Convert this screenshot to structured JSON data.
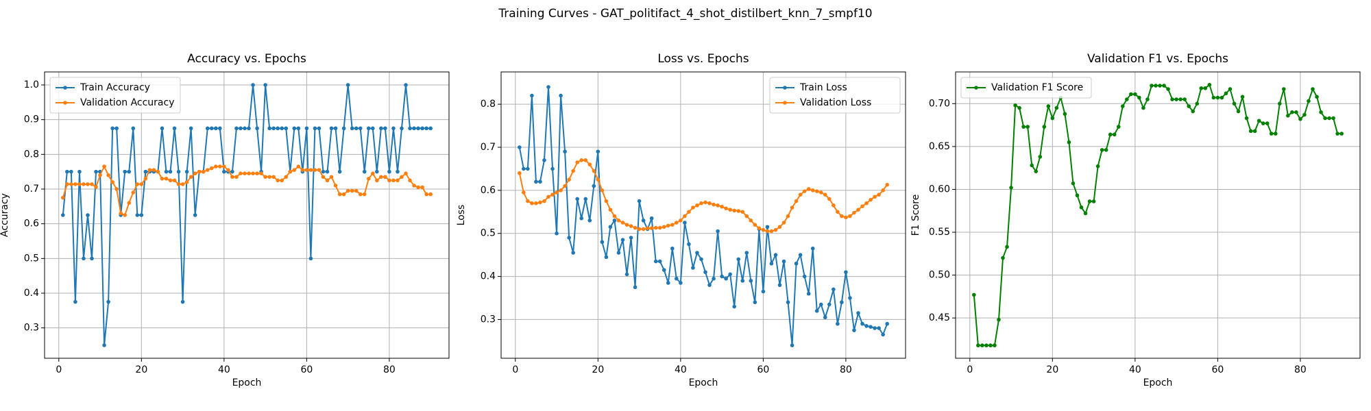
{
  "title": "Training Curves - GAT_politifact_4_shot_distilbert_knn_7_smpf10",
  "chart_data": [
    {
      "type": "line",
      "title": "Accuracy vs. Epochs",
      "x_label": "Epoch",
      "y_label": "Accuracy",
      "x": [
        1,
        2,
        3,
        4,
        5,
        6,
        7,
        8,
        9,
        10,
        11,
        12,
        13,
        14,
        15,
        16,
        17,
        18,
        19,
        20,
        21,
        22,
        23,
        24,
        25,
        26,
        27,
        28,
        29,
        30,
        31,
        32,
        33,
        34,
        35,
        36,
        37,
        38,
        39,
        40,
        41,
        42,
        43,
        44,
        45,
        46,
        47,
        48,
        49,
        50,
        51,
        52,
        53,
        54,
        55,
        56,
        57,
        58,
        59,
        60,
        61,
        62,
        63,
        64,
        65,
        66,
        67,
        68,
        69,
        70,
        71,
        72,
        73,
        74,
        75,
        76,
        77,
        78,
        79,
        80,
        81,
        82,
        83,
        84,
        85,
        86,
        87,
        88,
        89,
        90
      ],
      "series": [
        {
          "name": "Train Accuracy",
          "color": "#1f77b4",
          "values": [
            0.625,
            0.75,
            0.75,
            0.375,
            0.75,
            0.5,
            0.625,
            0.5,
            0.75,
            0.75,
            0.25,
            0.375,
            0.875,
            0.875,
            0.625,
            0.75,
            0.75,
            0.875,
            0.625,
            0.625,
            0.75,
            0.75,
            0.75,
            0.75,
            0.875,
            0.75,
            0.75,
            0.875,
            0.75,
            0.375,
            0.75,
            0.875,
            0.625,
            0.75,
            0.75,
            0.875,
            0.875,
            0.875,
            0.875,
            0.75,
            0.75,
            0.75,
            0.875,
            0.875,
            0.875,
            0.875,
            1.0,
            0.875,
            0.75,
            1.0,
            0.875,
            0.875,
            0.875,
            0.875,
            0.875,
            0.75,
            0.875,
            0.875,
            0.75,
            0.875,
            0.5,
            0.875,
            0.875,
            0.75,
            0.75,
            0.875,
            0.875,
            0.75,
            0.875,
            1.0,
            0.875,
            0.875,
            0.875,
            0.75,
            0.875,
            0.875,
            0.75,
            0.875,
            0.875,
            0.75,
            0.875,
            0.75,
            0.875,
            1.0,
            0.875,
            0.875,
            0.875,
            0.875,
            0.875,
            0.875
          ]
        },
        {
          "name": "Validation Accuracy",
          "color": "#ff7f0e",
          "values": [
            0.675,
            0.714,
            0.714,
            0.714,
            0.714,
            0.714,
            0.714,
            0.714,
            0.706,
            0.74,
            0.765,
            0.74,
            0.72,
            0.7,
            0.63,
            0.625,
            0.66,
            0.69,
            0.714,
            0.714,
            0.73,
            0.755,
            0.755,
            0.75,
            0.73,
            0.73,
            0.725,
            0.725,
            0.714,
            0.714,
            0.72,
            0.735,
            0.745,
            0.75,
            0.75,
            0.755,
            0.76,
            0.765,
            0.765,
            0.765,
            0.755,
            0.735,
            0.735,
            0.745,
            0.745,
            0.745,
            0.745,
            0.745,
            0.745,
            0.735,
            0.735,
            0.735,
            0.725,
            0.725,
            0.735,
            0.75,
            0.755,
            0.765,
            0.755,
            0.755,
            0.755,
            0.755,
            0.755,
            0.735,
            0.725,
            0.735,
            0.71,
            0.685,
            0.685,
            0.695,
            0.695,
            0.695,
            0.685,
            0.685,
            0.73,
            0.745,
            0.725,
            0.735,
            0.735,
            0.725,
            0.725,
            0.725,
            0.735,
            0.745,
            0.725,
            0.71,
            0.705,
            0.705,
            0.685,
            0.685
          ]
        }
      ],
      "xlim": [
        -3.45,
        94.45
      ],
      "xticks": [
        0,
        20,
        40,
        60,
        80
      ],
      "ylim": [
        0.2125,
        1.0375
      ],
      "yticks": [
        0.3,
        0.4,
        0.5,
        0.6,
        0.7,
        0.8,
        0.9,
        {
          "value": 1.0,
          "label": "1.0"
        }
      ],
      "grid": true,
      "legend": "upper left"
    },
    {
      "type": "line",
      "title": "Loss vs. Epochs",
      "x_label": "Epoch",
      "y_label": "Loss",
      "x": [
        1,
        2,
        3,
        4,
        5,
        6,
        7,
        8,
        9,
        10,
        11,
        12,
        13,
        14,
        15,
        16,
        17,
        18,
        19,
        20,
        21,
        22,
        23,
        24,
        25,
        26,
        27,
        28,
        29,
        30,
        31,
        32,
        33,
        34,
        35,
        36,
        37,
        38,
        39,
        40,
        41,
        42,
        43,
        44,
        45,
        46,
        47,
        48,
        49,
        50,
        51,
        52,
        53,
        54,
        55,
        56,
        57,
        58,
        59,
        60,
        61,
        62,
        63,
        64,
        65,
        66,
        67,
        68,
        69,
        70,
        71,
        72,
        73,
        74,
        75,
        76,
        77,
        78,
        79,
        80,
        81,
        82,
        83,
        84,
        85,
        86,
        87,
        88,
        89,
        90
      ],
      "series": [
        {
          "name": "Train Loss",
          "color": "#1f77b4",
          "values": [
            0.7,
            0.65,
            0.65,
            0.82,
            0.62,
            0.62,
            0.67,
            0.84,
            0.65,
            0.5,
            0.82,
            0.69,
            0.49,
            0.455,
            0.58,
            0.535,
            0.58,
            0.53,
            0.61,
            0.69,
            0.48,
            0.445,
            0.515,
            0.53,
            0.455,
            0.485,
            0.405,
            0.49,
            0.375,
            0.575,
            0.53,
            0.51,
            0.535,
            0.435,
            0.435,
            0.415,
            0.385,
            0.465,
            0.395,
            0.385,
            0.525,
            0.475,
            0.42,
            0.455,
            0.44,
            0.41,
            0.38,
            0.395,
            0.505,
            0.4,
            0.395,
            0.405,
            0.33,
            0.44,
            0.39,
            0.455,
            0.39,
            0.34,
            0.51,
            0.365,
            0.515,
            0.43,
            0.45,
            0.38,
            0.435,
            0.34,
            0.24,
            0.43,
            0.45,
            0.4,
            0.36,
            0.465,
            0.32,
            0.335,
            0.305,
            0.335,
            0.37,
            0.29,
            0.34,
            0.41,
            0.35,
            0.275,
            0.315,
            0.29,
            0.285,
            0.283,
            0.28,
            0.28,
            0.265,
            0.29
          ]
        },
        {
          "name": "Validation Loss",
          "color": "#ff7f0e",
          "values": [
            0.64,
            0.595,
            0.575,
            0.57,
            0.57,
            0.572,
            0.575,
            0.585,
            0.59,
            0.595,
            0.6,
            0.61,
            0.625,
            0.645,
            0.665,
            0.67,
            0.67,
            0.66,
            0.645,
            0.625,
            0.6,
            0.575,
            0.555,
            0.54,
            0.53,
            0.525,
            0.52,
            0.517,
            0.513,
            0.51,
            0.51,
            0.512,
            0.512,
            0.513,
            0.513,
            0.515,
            0.518,
            0.52,
            0.525,
            0.53,
            0.54,
            0.55,
            0.56,
            0.565,
            0.57,
            0.572,
            0.57,
            0.567,
            0.565,
            0.562,
            0.558,
            0.555,
            0.553,
            0.552,
            0.55,
            0.54,
            0.53,
            0.52,
            0.512,
            0.508,
            0.505,
            0.505,
            0.508,
            0.515,
            0.525,
            0.54,
            0.56,
            0.575,
            0.59,
            0.598,
            0.603,
            0.6,
            0.598,
            0.595,
            0.59,
            0.58,
            0.565,
            0.55,
            0.54,
            0.537,
            0.54,
            0.548,
            0.555,
            0.563,
            0.57,
            0.578,
            0.585,
            0.59,
            0.6,
            0.613
          ]
        }
      ],
      "xlim": [
        -3.45,
        94.45
      ],
      "xticks": [
        0,
        20,
        40,
        60,
        80
      ],
      "ylim": [
        0.21,
        0.875
      ],
      "yticks": [
        0.3,
        0.4,
        0.5,
        0.6,
        0.7,
        0.8
      ],
      "grid": true,
      "legend": "upper right"
    },
    {
      "type": "line",
      "title": "Validation F1 vs. Epochs",
      "x_label": "Epoch",
      "y_label": "F1 Score",
      "x": [
        1,
        2,
        3,
        4,
        5,
        6,
        7,
        8,
        9,
        10,
        11,
        12,
        13,
        14,
        15,
        16,
        17,
        18,
        19,
        20,
        21,
        22,
        23,
        24,
        25,
        26,
        27,
        28,
        29,
        30,
        31,
        32,
        33,
        34,
        35,
        36,
        37,
        38,
        39,
        40,
        41,
        42,
        43,
        44,
        45,
        46,
        47,
        48,
        49,
        50,
        51,
        52,
        53,
        54,
        55,
        56,
        57,
        58,
        59,
        60,
        61,
        62,
        63,
        64,
        65,
        66,
        67,
        68,
        69,
        70,
        71,
        72,
        73,
        74,
        75,
        76,
        77,
        78,
        79,
        80,
        81,
        82,
        83,
        84,
        85,
        86,
        87,
        88,
        89,
        90
      ],
      "series": [
        {
          "name": "Validation F1 Score",
          "color": "#008000",
          "values": [
            0.477,
            0.418,
            0.418,
            0.418,
            0.418,
            0.418,
            0.448,
            0.52,
            0.533,
            0.602,
            0.698,
            0.695,
            0.673,
            0.673,
            0.628,
            0.621,
            0.638,
            0.673,
            0.697,
            0.683,
            0.695,
            0.707,
            0.688,
            0.655,
            0.607,
            0.593,
            0.579,
            0.572,
            0.586,
            0.586,
            0.627,
            0.646,
            0.646,
            0.664,
            0.664,
            0.673,
            0.697,
            0.705,
            0.711,
            0.711,
            0.707,
            0.695,
            0.705,
            0.721,
            0.721,
            0.721,
            0.721,
            0.717,
            0.705,
            0.705,
            0.705,
            0.705,
            0.697,
            0.691,
            0.7,
            0.718,
            0.718,
            0.722,
            0.707,
            0.707,
            0.707,
            0.712,
            0.717,
            0.7,
            0.691,
            0.708,
            0.683,
            0.668,
            0.668,
            0.68,
            0.677,
            0.677,
            0.665,
            0.665,
            0.7,
            0.717,
            0.686,
            0.69,
            0.69,
            0.682,
            0.687,
            0.703,
            0.717,
            0.708,
            0.69,
            0.683,
            0.683,
            0.683,
            0.665,
            0.665
          ]
        }
      ],
      "xlim": [
        -3.45,
        94.45
      ],
      "xticks": [
        0,
        20,
        40,
        60,
        80
      ],
      "ylim": [
        0.403,
        0.737
      ],
      "yticks": [
        0.45,
        {
          "value": 0.5,
          "label": "0.50"
        },
        0.55,
        {
          "value": 0.6,
          "label": "0.60"
        },
        0.65,
        {
          "value": 0.7,
          "label": "0.70"
        }
      ],
      "grid": true,
      "legend": "upper left"
    }
  ]
}
